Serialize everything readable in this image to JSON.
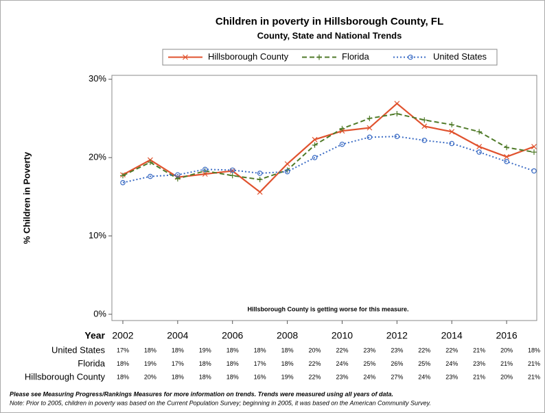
{
  "chart_data": {
    "type": "line",
    "title": "Children in poverty in Hillsborough County, FL",
    "subtitle": "County, State and National Trends",
    "ylabel": "% Children in Poverty",
    "xlabel": "Year",
    "annotation": "Hillsborough County is getting worse for this measure.",
    "notes": [
      "Please see Measuring Progress/Rankings Measures for more information on trends. Trends were measured using all years of data.",
      "Note: Prior to 2005, children in poverty was based on the Current Population Survey; beginning in 2005, it was based on the American Community Survey."
    ],
    "x": [
      2002,
      2003,
      2004,
      2005,
      2006,
      2007,
      2008,
      2009,
      2010,
      2011,
      2012,
      2013,
      2014,
      2015,
      2016,
      2017
    ],
    "xlim": [
      2001.6,
      2017.1
    ],
    "xticks": [
      2002,
      2004,
      2006,
      2008,
      2010,
      2012,
      2014,
      2016
    ],
    "ylim": [
      -0.8,
      30.5
    ],
    "yticks": [
      {
        "value": 0,
        "label": "0%"
      },
      {
        "value": 10,
        "label": "10%"
      },
      {
        "value": 20,
        "label": "20%"
      },
      {
        "value": 30,
        "label": "30%"
      }
    ],
    "series": [
      {
        "name": "Hillsborough County",
        "color": "#e0522e",
        "dash": "solid",
        "marker": "x",
        "values": [
          17.8,
          19.7,
          17.5,
          17.9,
          18.3,
          15.6,
          19.2,
          22.3,
          23.4,
          23.8,
          26.9,
          24.0,
          23.3,
          21.4,
          20.1,
          21.4
        ],
        "value_labels": [
          "18%",
          "20%",
          "18%",
          "18%",
          "18%",
          "16%",
          "19%",
          "22%",
          "23%",
          "24%",
          "27%",
          "24%",
          "23%",
          "21%",
          "20%",
          "21%"
        ]
      },
      {
        "name": "Florida",
        "color": "#4f7a28",
        "dash": "dashed",
        "marker": "plus",
        "values": [
          17.7,
          19.4,
          17.3,
          18.3,
          17.7,
          17.2,
          18.4,
          21.6,
          23.7,
          25.0,
          25.6,
          24.8,
          24.2,
          23.3,
          21.3,
          20.7
        ],
        "value_labels": [
          "18%",
          "19%",
          "17%",
          "18%",
          "18%",
          "17%",
          "18%",
          "22%",
          "24%",
          "25%",
          "26%",
          "25%",
          "24%",
          "23%",
          "21%",
          "21%"
        ]
      },
      {
        "name": "United States",
        "color": "#3a6bc4",
        "dash": "dotted",
        "marker": "circle",
        "values": [
          16.8,
          17.6,
          17.8,
          18.5,
          18.4,
          18.0,
          18.2,
          20.0,
          21.7,
          22.6,
          22.7,
          22.2,
          21.8,
          20.7,
          19.5,
          18.3
        ],
        "value_labels": [
          "17%",
          "18%",
          "18%",
          "19%",
          "18%",
          "18%",
          "18%",
          "20%",
          "22%",
          "23%",
          "23%",
          "22%",
          "22%",
          "21%",
          "20%",
          "18%"
        ]
      }
    ]
  }
}
